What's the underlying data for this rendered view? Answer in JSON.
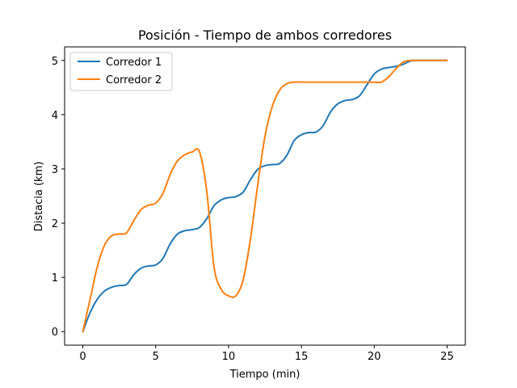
{
  "chart_data": {
    "type": "line",
    "title": "Posición - Tiempo de ambos corredores",
    "xlabel": "Tiempo (min)",
    "ylabel": "Distacia (km)",
    "xlim": [
      -1.25,
      26.25
    ],
    "ylim": [
      -0.25,
      5.25
    ],
    "xticks": [
      0,
      5,
      10,
      15,
      20,
      25
    ],
    "yticks": [
      0,
      1,
      2,
      3,
      4,
      5
    ],
    "xtick_labels": [
      "0",
      "5",
      "10",
      "15",
      "20",
      "25"
    ],
    "ytick_labels": [
      "0",
      "1",
      "2",
      "3",
      "4",
      "5"
    ],
    "grid": false,
    "legend_position": "upper-left",
    "series": [
      {
        "name": "Corredor 1",
        "color": "#1f77b4",
        "x": [
          0,
          0.5,
          1,
          1.5,
          2,
          2.5,
          3,
          3.5,
          4,
          4.5,
          5,
          5.5,
          6,
          6.5,
          7,
          7.5,
          8,
          8.5,
          9,
          9.5,
          10,
          10.5,
          11,
          11.5,
          12,
          12.5,
          13,
          13.5,
          14,
          14.5,
          15,
          15.5,
          16,
          16.5,
          17,
          17.5,
          18,
          18.5,
          19,
          19.5,
          20,
          20.5,
          21,
          21.5,
          22,
          22.5,
          23,
          23.5,
          24,
          24.5,
          25
        ],
        "y": [
          0,
          0.35,
          0.6,
          0.75,
          0.82,
          0.85,
          0.87,
          1.05,
          1.17,
          1.21,
          1.23,
          1.35,
          1.62,
          1.8,
          1.86,
          1.88,
          1.92,
          2.08,
          2.32,
          2.43,
          2.47,
          2.49,
          2.57,
          2.8,
          2.99,
          3.06,
          3.08,
          3.1,
          3.25,
          3.52,
          3.63,
          3.67,
          3.68,
          3.8,
          4.05,
          4.2,
          4.26,
          4.28,
          4.35,
          4.55,
          4.75,
          4.84,
          4.87,
          4.89,
          4.93,
          4.99,
          5.0,
          5.0,
          5.0,
          5.0,
          5.0
        ]
      },
      {
        "name": "Corredor 2",
        "color": "#ff7f0e",
        "x": [
          0,
          0.5,
          1,
          1.5,
          2,
          2.5,
          3,
          3.5,
          4,
          4.5,
          5,
          5.5,
          6,
          6.5,
          7,
          7.5,
          8,
          8.5,
          9,
          9.5,
          10,
          10.5,
          11,
          11.5,
          12,
          12.5,
          13,
          13.5,
          14,
          14.5,
          15,
          15.5,
          16,
          16.5,
          17,
          17.5,
          18,
          18.5,
          19,
          19.5,
          20,
          20.5,
          21,
          21.5,
          22,
          22.5,
          23,
          23.5,
          24,
          24.5,
          25
        ],
        "y": [
          0,
          0.6,
          1.2,
          1.6,
          1.77,
          1.8,
          1.82,
          2.05,
          2.25,
          2.33,
          2.37,
          2.55,
          2.9,
          3.15,
          3.26,
          3.31,
          3.32,
          2.6,
          1.2,
          0.78,
          0.66,
          0.66,
          0.95,
          1.7,
          2.7,
          3.6,
          4.15,
          4.45,
          4.57,
          4.6,
          4.6,
          4.6,
          4.6,
          4.6,
          4.6,
          4.6,
          4.6,
          4.6,
          4.6,
          4.6,
          4.6,
          4.6,
          4.7,
          4.85,
          4.97,
          5.0,
          5.0,
          5.0,
          5.0,
          5.0,
          5.0
        ]
      }
    ]
  }
}
